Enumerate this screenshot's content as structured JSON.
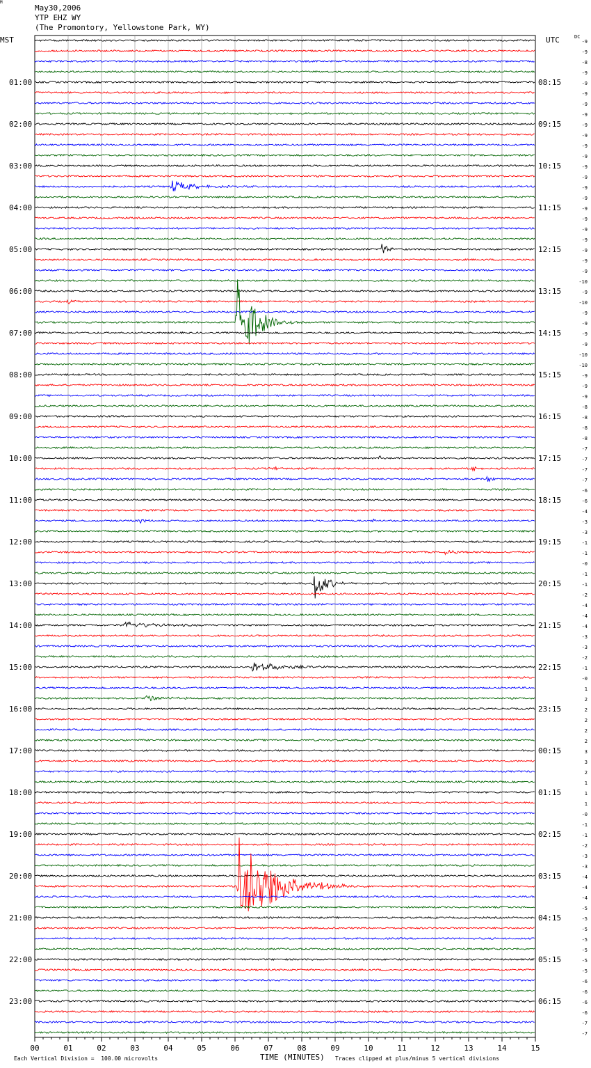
{
  "header": {
    "date": "May30,2006",
    "station": "YTP EHZ WY",
    "location": "(The Promontory, Yellowstone Park, WY)"
  },
  "left_timezone": "MST",
  "right_timezone": "UTC",
  "dc_label": "DC",
  "footer": {
    "scale_note": "Each Vertical Division =  100.00 microvolts",
    "x_axis_label": "TIME (MINUTES)",
    "clip_note": "Traces clipped at plus/minus 5 vertical divisions",
    "corner_mark": "M"
  },
  "colors": {
    "trace_cycle": [
      "#000000",
      "#ff0000",
      "#0000ff",
      "#006400"
    ],
    "grid": "#888888"
  },
  "chart_data": {
    "type": "line",
    "title": "",
    "xlabel": "TIME (MINUTES)",
    "ylabel": "",
    "xlim": [
      0,
      15
    ],
    "x_ticks": [
      "00",
      "01",
      "02",
      "03",
      "04",
      "05",
      "06",
      "07",
      "08",
      "09",
      "10",
      "11",
      "12",
      "13",
      "14",
      "15"
    ],
    "minutes_per_trace": 15,
    "trace_count": 96,
    "left_hour_labels": [
      "01:00",
      "02:00",
      "03:00",
      "04:00",
      "05:00",
      "06:00",
      "07:00",
      "08:00",
      "09:00",
      "10:00",
      "11:00",
      "12:00",
      "13:00",
      "14:00",
      "15:00",
      "16:00",
      "17:00",
      "18:00",
      "19:00",
      "20:00",
      "21:00",
      "22:00",
      "23:00"
    ],
    "right_hour_labels": [
      "08:15",
      "09:15",
      "10:15",
      "11:15",
      "12:15",
      "13:15",
      "14:15",
      "15:15",
      "16:15",
      "17:15",
      "18:15",
      "19:15",
      "20:15",
      "21:15",
      "22:15",
      "23:15",
      "00:15",
      "01:15",
      "02:15",
      "03:15",
      "04:15",
      "05:15",
      "06:15"
    ],
    "dc_offsets": [
      "-9",
      "-9",
      "-8",
      "-9",
      "-9",
      "-9",
      "-9",
      "-9",
      "-9",
      "-9",
      "-9",
      "-9",
      "-9",
      "-9",
      "-9",
      "-9",
      "-9",
      "-9",
      "-9",
      "-9",
      "-9",
      "-9",
      "-9",
      "-10",
      "-9",
      "-10",
      "-9",
      "-9",
      "-9",
      "-9",
      "-10",
      "-10",
      "-9",
      "-9",
      "-9",
      "-8",
      "-8",
      "-8",
      "-8",
      "-7",
      "-7",
      "-7",
      "-7",
      "-6",
      "-6",
      "-4",
      "-3",
      "-3",
      "-1",
      "-1",
      "-0",
      "-1",
      "-1",
      "-2",
      "-4",
      "-4",
      "-4",
      "-3",
      "-3",
      "-2",
      "-1",
      "-0",
      "1",
      "2",
      "2",
      "2",
      "2",
      "2",
      "3",
      "3",
      "2",
      "1",
      "1",
      "1",
      "-0",
      "-1",
      "-1",
      "-2",
      "-3",
      "-3",
      "-4",
      "-4",
      "-4",
      "-5",
      "-5",
      "-5",
      "-5",
      "-5",
      "-5",
      "-5",
      "-6",
      "-6",
      "-6",
      "-6",
      "-7",
      "-7"
    ],
    "events": [
      {
        "trace": 2,
        "minute": 9.2,
        "amp": 2,
        "dur": 0.4
      },
      {
        "trace": 14,
        "minute": 4.1,
        "amp": 9,
        "dur": 1.2
      },
      {
        "trace": 20,
        "minute": 10.35,
        "amp": 12,
        "dur": 0.4
      },
      {
        "trace": 25,
        "minute": 0.98,
        "amp": 6,
        "dur": 0.2
      },
      {
        "trace": 27,
        "minute": 6.05,
        "amp": 75,
        "dur": 1.0
      },
      {
        "trace": 27,
        "minute": 13.0,
        "amp": 3,
        "dur": 0.4
      },
      {
        "trace": 40,
        "minute": 10.3,
        "amp": 7,
        "dur": 0.2
      },
      {
        "trace": 41,
        "minute": 7.0,
        "amp": 3,
        "dur": 0.6
      },
      {
        "trace": 41,
        "minute": 13.1,
        "amp": 6,
        "dur": 0.3
      },
      {
        "trace": 42,
        "minute": 13.55,
        "amp": 4,
        "dur": 0.3
      },
      {
        "trace": 46,
        "minute": 3.0,
        "amp": 3,
        "dur": 1.2
      },
      {
        "trace": 46,
        "minute": 10.1,
        "amp": 4,
        "dur": 0.3
      },
      {
        "trace": 49,
        "minute": 12.3,
        "amp": 3,
        "dur": 0.8
      },
      {
        "trace": 52,
        "minute": 8.35,
        "amp": 26,
        "dur": 0.7
      },
      {
        "trace": 56,
        "minute": 2.7,
        "amp": 5,
        "dur": 2.0
      },
      {
        "trace": 60,
        "minute": 6.5,
        "amp": 8,
        "dur": 1.8
      },
      {
        "trace": 63,
        "minute": 3.3,
        "amp": 4,
        "dur": 1.5
      },
      {
        "trace": 81,
        "minute": 6.1,
        "amp": 75,
        "dur": 2.0
      }
    ]
  }
}
